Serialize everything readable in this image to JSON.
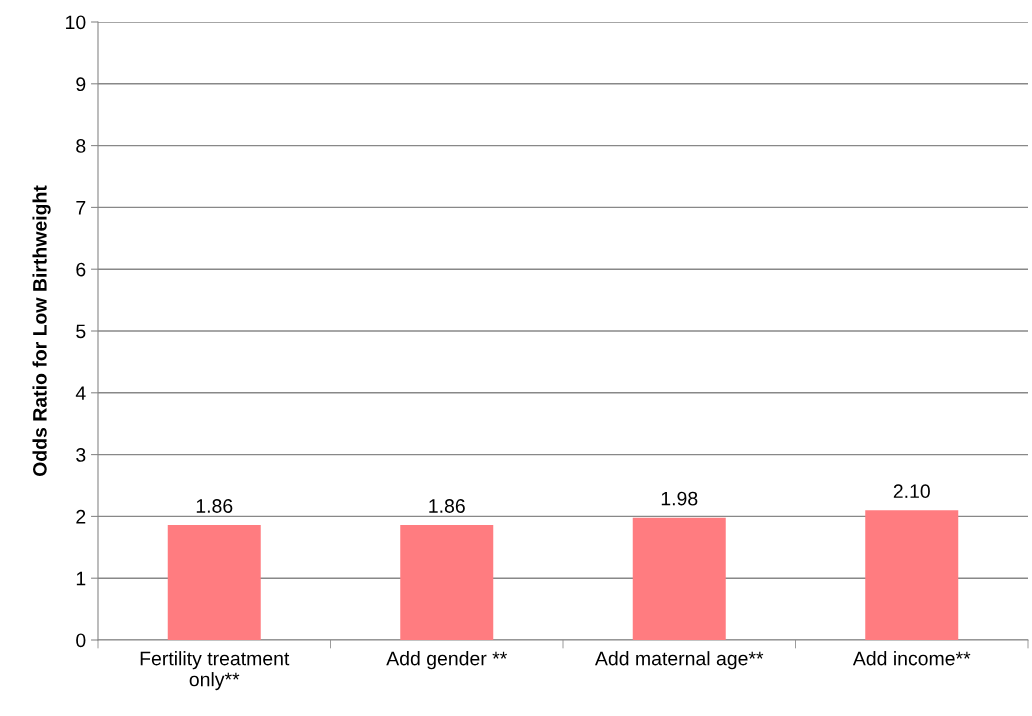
{
  "chart_data": {
    "type": "bar",
    "ylabel": "Odds Ratio for Low Birthweight",
    "categories": [
      "Fertility treatment\nonly**",
      "Add gender **",
      "Add maternal age**",
      "Add income**"
    ],
    "values": [
      1.86,
      1.86,
      1.98,
      2.1
    ],
    "value_labels": [
      "1.86",
      "1.86",
      "1.98",
      "2.10"
    ],
    "color": "#ff7c80",
    "ylim": [
      0,
      10
    ],
    "yticks": [
      0,
      1,
      2,
      3,
      4,
      5,
      6,
      7,
      8,
      9,
      10
    ],
    "grid": "y",
    "legend": false
  }
}
